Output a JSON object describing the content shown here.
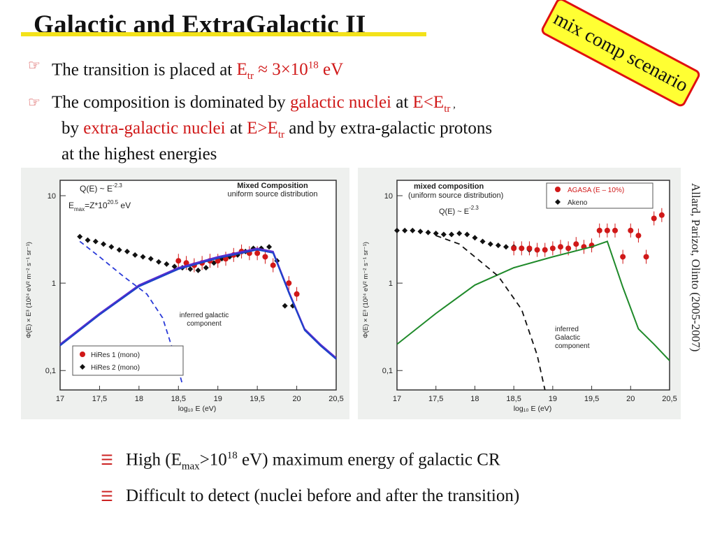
{
  "title": "Galactic and ExtraGalactic II",
  "stamp": "mix comp scenario",
  "bullets": {
    "b1": {
      "text": "The transition is placed at ",
      "e": "E",
      "tr": "tr",
      "approx": " ≈ 3×10",
      "exp": "18",
      "unit": " eV"
    },
    "b2": {
      "l1a": "The composition is dominated by ",
      "gal": "galactic nuclei",
      "at": " at ",
      "e": "E<E",
      "tr": "tr",
      "comma": " ,",
      "l2a": "by ",
      "xgal": "extra-galactic nuclei",
      "at2": " at ",
      "e2": "E>E",
      "tr2": "tr",
      "l2b": " and by extra-galactic protons",
      "l3": "at the highest energies"
    }
  },
  "plot1": {
    "q": "Q(E) ~ E",
    "qexp": "-2.3",
    "emax": "E",
    "emaxsub": "max",
    "emaxrest": "=Z*10",
    "emaxexp": "20.5",
    "emaxunit": " eV",
    "t1": "Mixed Composition",
    "t2": "uniform source distribution",
    "anno1": "inferred galactic",
    "anno2": "component",
    "legend": [
      "HiRes 1 (mono)",
      "HiRes 2 (mono)"
    ],
    "ylabel": "Φ(E) × E³ (10²⁴ eV² m⁻² s⁻¹ sr⁻¹)",
    "xlabel": "log₁₀ E (eV)",
    "xticks": [
      "17",
      "17,5",
      "18",
      "18,5",
      "19",
      "19,5",
      "20",
      "20,5"
    ],
    "yticks": [
      "10",
      "1",
      "0,1"
    ]
  },
  "plot2": {
    "t1": "mixed composition",
    "t2": "(uniform source distribution)",
    "q": "Q(E) ~ E",
    "qexp": "-2.3",
    "anno1": "inferred",
    "anno2": "Galactic",
    "anno3": "component",
    "legend": [
      "AGASA (E – 10%)",
      "Akeno"
    ],
    "ylabel": "Φ(E) × E³ (10²⁴ eV² m⁻² s⁻¹ sr⁻¹)",
    "xlabel": "log₁₀ E (eV)",
    "xticks": [
      "17",
      "17,5",
      "18",
      "18,5",
      "19",
      "19,5",
      "20",
      "20,5"
    ],
    "yticks": [
      "10",
      "1",
      "0,1"
    ]
  },
  "citation": "Allard, Parizot, Olinto (2005-2007)",
  "bottom": {
    "b1": {
      "a": "High (E",
      "sub": "max",
      "b": ">10",
      "sup": "18",
      "c": " eV) maximum energy of galactic CR"
    },
    "b2": "Difficult to detect (nuclei before and after the transition)"
  },
  "chart_data": [
    {
      "type": "scatter",
      "xlabel": "log₁₀ E (eV)",
      "xlim": [
        17,
        20.5
      ],
      "ylim": [
        0.06,
        15
      ],
      "yscale": "log",
      "series": [
        {
          "name": "HiRes 2 (mono)",
          "points": [
            [
              17.25,
              3.4
            ],
            [
              17.35,
              3.1
            ],
            [
              17.45,
              3.0
            ],
            [
              17.55,
              2.8
            ],
            [
              17.65,
              2.6
            ],
            [
              17.75,
              2.4
            ],
            [
              17.85,
              2.3
            ],
            [
              17.95,
              2.1
            ],
            [
              18.05,
              2.0
            ],
            [
              18.15,
              1.9
            ],
            [
              18.25,
              1.75
            ],
            [
              18.35,
              1.65
            ],
            [
              18.45,
              1.55
            ],
            [
              18.55,
              1.5
            ],
            [
              18.65,
              1.45
            ],
            [
              18.75,
              1.4
            ],
            [
              18.85,
              1.5
            ],
            [
              18.95,
              1.7
            ],
            [
              19.05,
              1.9
            ],
            [
              19.15,
              2.0
            ],
            [
              19.25,
              2.1
            ],
            [
              19.35,
              2.3
            ],
            [
              19.45,
              2.5
            ],
            [
              19.55,
              2.5
            ],
            [
              19.65,
              2.6
            ],
            [
              19.75,
              1.8
            ],
            [
              19.85,
              0.55
            ],
            [
              19.95,
              0.55
            ]
          ]
        },
        {
          "name": "HiRes 1 (mono)",
          "points": [
            [
              18.5,
              1.8
            ],
            [
              18.6,
              1.7
            ],
            [
              18.7,
              1.6
            ],
            [
              18.8,
              1.7
            ],
            [
              18.9,
              1.8
            ],
            [
              19.0,
              1.8
            ],
            [
              19.1,
              1.9
            ],
            [
              19.2,
              2.1
            ],
            [
              19.3,
              2.3
            ],
            [
              19.4,
              2.2
            ],
            [
              19.5,
              2.2
            ],
            [
              19.6,
              2.0
            ],
            [
              19.7,
              1.6
            ],
            [
              19.9,
              1.0
            ],
            [
              20.0,
              0.75
            ]
          ]
        },
        {
          "name": "model-solid",
          "points": [
            [
              17,
              0.2
            ],
            [
              17.5,
              0.45
            ],
            [
              18,
              0.95
            ],
            [
              18.5,
              1.5
            ],
            [
              19,
              2.0
            ],
            [
              19.5,
              2.5
            ],
            [
              19.7,
              2.3
            ],
            [
              19.9,
              0.8
            ],
            [
              20.1,
              0.3
            ],
            [
              20.3,
              0.2
            ],
            [
              20.5,
              0.14
            ]
          ]
        },
        {
          "name": "inferred-galactic",
          "points": [
            [
              17.25,
              3.0
            ],
            [
              17.5,
              2.0
            ],
            [
              17.8,
              1.2
            ],
            [
              18.1,
              0.75
            ],
            [
              18.3,
              0.4
            ],
            [
              18.45,
              0.15
            ],
            [
              18.55,
              0.07
            ]
          ]
        }
      ]
    },
    {
      "type": "scatter",
      "xlabel": "log₁₀ E (eV)",
      "xlim": [
        17,
        20.5
      ],
      "ylim": [
        0.06,
        15
      ],
      "yscale": "log",
      "series": [
        {
          "name": "Akeno",
          "points": [
            [
              17.0,
              4.0
            ],
            [
              17.1,
              4.0
            ],
            [
              17.2,
              4.0
            ],
            [
              17.3,
              3.9
            ],
            [
              17.4,
              3.8
            ],
            [
              17.5,
              3.7
            ],
            [
              17.6,
              3.6
            ],
            [
              17.7,
              3.6
            ],
            [
              17.8,
              3.7
            ],
            [
              17.9,
              3.6
            ],
            [
              18.0,
              3.3
            ],
            [
              18.1,
              3.0
            ],
            [
              18.2,
              2.8
            ],
            [
              18.3,
              2.7
            ],
            [
              18.4,
              2.6
            ],
            [
              18.5,
              2.6
            ],
            [
              18.6,
              2.5
            ],
            [
              18.7,
              2.4
            ]
          ]
        },
        {
          "name": "AGASA (E – 10%)",
          "points": [
            [
              18.5,
              2.5
            ],
            [
              18.6,
              2.5
            ],
            [
              18.7,
              2.5
            ],
            [
              18.8,
              2.4
            ],
            [
              18.9,
              2.4
            ],
            [
              19.0,
              2.5
            ],
            [
              19.1,
              2.6
            ],
            [
              19.2,
              2.5
            ],
            [
              19.3,
              2.8
            ],
            [
              19.4,
              2.6
            ],
            [
              19.5,
              2.7
            ],
            [
              19.6,
              4.0
            ],
            [
              19.7,
              4.0
            ],
            [
              19.8,
              4.0
            ],
            [
              19.9,
              2.0
            ],
            [
              20.0,
              4.0
            ],
            [
              20.1,
              3.5
            ],
            [
              20.2,
              2.0
            ],
            [
              20.3,
              5.5
            ],
            [
              20.4,
              6.0
            ]
          ]
        },
        {
          "name": "model-green",
          "points": [
            [
              17,
              0.2
            ],
            [
              17.5,
              0.45
            ],
            [
              18,
              0.95
            ],
            [
              18.5,
              1.5
            ],
            [
              19,
              2.0
            ],
            [
              19.5,
              2.6
            ],
            [
              19.7,
              3.0
            ],
            [
              19.9,
              0.9
            ],
            [
              20.1,
              0.3
            ],
            [
              20.3,
              0.2
            ],
            [
              20.5,
              0.13
            ]
          ]
        },
        {
          "name": "inferred-galactic",
          "points": [
            [
              17.5,
              3.5
            ],
            [
              17.8,
              2.8
            ],
            [
              18.0,
              2.0
            ],
            [
              18.3,
              1.2
            ],
            [
              18.6,
              0.5
            ],
            [
              18.8,
              0.15
            ],
            [
              18.9,
              0.06
            ]
          ]
        }
      ]
    }
  ]
}
